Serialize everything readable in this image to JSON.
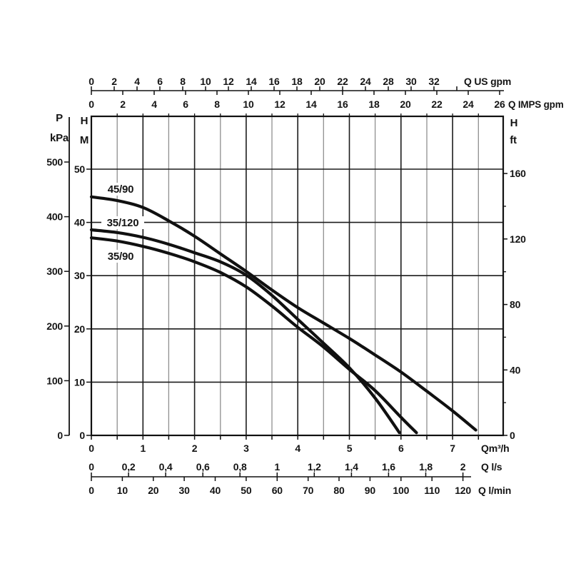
{
  "page": {
    "background": "#ffffff"
  },
  "chart_data": {
    "type": "line",
    "title": "",
    "description": "Pump performance curves: head vs flow",
    "axes": {
      "top_primary": {
        "unit": "Q US gpm",
        "ticks": [
          "0",
          "2",
          "4",
          "6",
          "8",
          "10",
          "12",
          "14",
          "16",
          "18",
          "20",
          "22",
          "24",
          "28",
          "30",
          "32"
        ]
      },
      "top_secondary": {
        "unit": "Q IMPS gpm",
        "ticks": [
          "0",
          "2",
          "4",
          "6",
          "8",
          "10",
          "12",
          "14",
          "16",
          "18",
          "20",
          "22",
          "24",
          "26"
        ]
      },
      "left_pressure": {
        "head": "P",
        "unit": "kPa",
        "ticks": [
          "500",
          "400",
          "300",
          "200",
          "100",
          "0"
        ],
        "values": [
          500,
          400,
          300,
          200,
          100,
          0
        ]
      },
      "left_head": {
        "head": "H",
        "unit": "M",
        "ticks": [
          "50",
          "40",
          "30",
          "20",
          "10",
          "0"
        ],
        "values": [
          50,
          40,
          30,
          20,
          10,
          0
        ]
      },
      "right_head": {
        "head": "H",
        "unit": "ft",
        "ticks": [
          "160",
          "120",
          "80",
          "40",
          "0"
        ],
        "values": [
          160,
          120,
          80,
          40,
          0
        ],
        "minor_values": [
          140,
          100,
          60,
          20
        ]
      },
      "bottom_flow_m3h": {
        "unit": "Qm³/h",
        "ticks": [
          "0",
          "1",
          "2",
          "3",
          "4",
          "5",
          "6",
          "7"
        ],
        "values": [
          0,
          1,
          2,
          3,
          4,
          5,
          6,
          7
        ],
        "xlim": [
          0,
          7.95
        ]
      },
      "bottom_flow_ls": {
        "unit": "Q l/s",
        "ticks": [
          "0",
          "0,2",
          "0,4",
          "0,6",
          "0,8",
          "1",
          "1,2",
          "1,4",
          "1,6",
          "1,8",
          "2"
        ],
        "values": [
          0,
          0.2,
          0.4,
          0.6,
          0.8,
          1,
          1.2,
          1.4,
          1.6,
          1.8,
          2
        ]
      },
      "bottom_flow_lmin": {
        "unit": "Q l/min",
        "ticks": [
          "0",
          "10",
          "20",
          "30",
          "40",
          "50",
          "60",
          "70",
          "80",
          "90",
          "100",
          "110",
          "120"
        ],
        "values": [
          0,
          10,
          20,
          30,
          40,
          50,
          60,
          70,
          80,
          90,
          100,
          110,
          120
        ]
      }
    },
    "ylim_m": [
      0,
      60
    ],
    "grid": {
      "vertical_step_m3h": 0.5,
      "horizontal_step_m": 10
    },
    "series": [
      {
        "name": "45/90",
        "points": [
          [
            0,
            44.8
          ],
          [
            0.5,
            44.1
          ],
          [
            1,
            42.8
          ],
          [
            1.5,
            40.3
          ],
          [
            2,
            37.4
          ],
          [
            2.5,
            34.1
          ],
          [
            3,
            30.8
          ],
          [
            3.5,
            27.3
          ],
          [
            4,
            24.0
          ],
          [
            4.5,
            21.1
          ],
          [
            5,
            18.2
          ],
          [
            5.5,
            15.1
          ],
          [
            6,
            11.9
          ],
          [
            6.5,
            8.3
          ],
          [
            7,
            4.6
          ],
          [
            7.45,
            1.0
          ]
        ]
      },
      {
        "name": "35/120",
        "points": [
          [
            0,
            38.6
          ],
          [
            0.5,
            38.1
          ],
          [
            1,
            37.2
          ],
          [
            1.5,
            35.9
          ],
          [
            2,
            34.3
          ],
          [
            2.5,
            32.6
          ],
          [
            3,
            30.1
          ],
          [
            3.5,
            26.3
          ],
          [
            4,
            21.8
          ],
          [
            4.5,
            17.3
          ],
          [
            5,
            12.7
          ],
          [
            5.5,
            7.0
          ],
          [
            5.97,
            0.5
          ]
        ]
      },
      {
        "name": "35/90",
        "points": [
          [
            0,
            37.1
          ],
          [
            0.5,
            36.5
          ],
          [
            1,
            35.5
          ],
          [
            1.5,
            34.2
          ],
          [
            2,
            32.6
          ],
          [
            2.5,
            30.6
          ],
          [
            3,
            27.9
          ],
          [
            3.5,
            24.3
          ],
          [
            4,
            20.3
          ],
          [
            4.5,
            16.6
          ],
          [
            5,
            12.4
          ],
          [
            5.5,
            8.4
          ],
          [
            6,
            3.4
          ],
          [
            6.3,
            0.5
          ]
        ]
      }
    ],
    "colors": {
      "curve": "#101010",
      "grid_major": "#1c1c1c",
      "grid_minor": "#8f8f8f",
      "border": "#111111",
      "text": "#141414",
      "background": "#ffffff"
    }
  }
}
